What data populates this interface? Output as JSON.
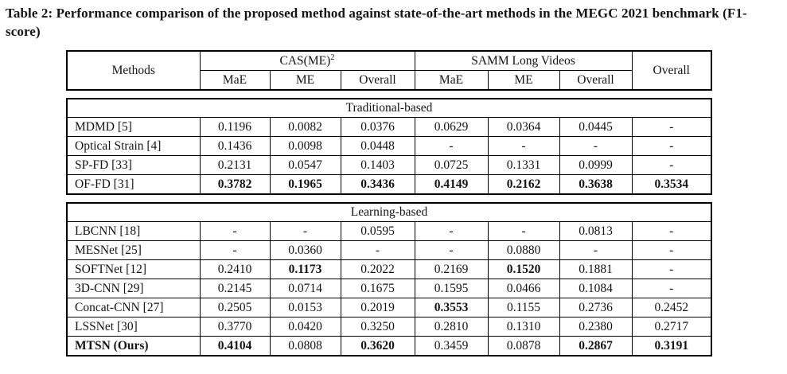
{
  "title": "Table 2: Performance comparison of the proposed method against state-of-the-art methods in the MEGC 2021 benchmark (F1-score)",
  "table": {
    "header": {
      "methods_label": "Methods",
      "cas_label": "CAS(ME)",
      "cas_sup": "2",
      "samm_label": "SAMM Long Videos",
      "overall_label": "Overall",
      "subheaders": [
        "MaE",
        "ME",
        "Overall",
        "MaE",
        "ME",
        "Overall"
      ]
    },
    "sections": [
      {
        "label": "Traditional-based",
        "rows": [
          {
            "method": "MDMD [5]",
            "method_bold": false,
            "values": [
              "0.1196",
              "0.0082",
              "0.0376",
              "0.0629",
              "0.0364",
              "0.0445",
              "-"
            ],
            "bold": [
              false,
              false,
              false,
              false,
              false,
              false,
              false
            ]
          },
          {
            "method": "Optical Strain [4]",
            "method_bold": false,
            "values": [
              "0.1436",
              "0.0098",
              "0.0448",
              "-",
              "-",
              "-",
              "-"
            ],
            "bold": [
              false,
              false,
              false,
              false,
              false,
              false,
              false
            ]
          },
          {
            "method": "SP-FD [33]",
            "method_bold": false,
            "values": [
              "0.2131",
              "0.0547",
              "0.1403",
              "0.0725",
              "0.1331",
              "0.0999",
              "-"
            ],
            "bold": [
              false,
              false,
              false,
              false,
              false,
              false,
              false
            ]
          },
          {
            "method": "OF-FD [31]",
            "method_bold": false,
            "values": [
              "0.3782",
              "0.1965",
              "0.3436",
              "0.4149",
              "0.2162",
              "0.3638",
              "0.3534"
            ],
            "bold": [
              true,
              true,
              true,
              true,
              true,
              true,
              true
            ]
          }
        ]
      },
      {
        "label": "Learning-based",
        "rows": [
          {
            "method": "LBCNN [18]",
            "method_bold": false,
            "values": [
              "-",
              "-",
              "0.0595",
              "-",
              "-",
              "0.0813",
              "-"
            ],
            "bold": [
              false,
              false,
              false,
              false,
              false,
              false,
              false
            ]
          },
          {
            "method": "MESNet [25]",
            "method_bold": false,
            "values": [
              "-",
              "0.0360",
              "-",
              "-",
              "0.0880",
              "-",
              "-"
            ],
            "bold": [
              false,
              false,
              false,
              false,
              false,
              false,
              false
            ]
          },
          {
            "method": "SOFTNet [12]",
            "method_bold": false,
            "values": [
              "0.2410",
              "0.1173",
              "0.2022",
              "0.2169",
              "0.1520",
              "0.1881",
              "-"
            ],
            "bold": [
              false,
              true,
              false,
              false,
              true,
              false,
              false
            ]
          },
          {
            "method": "3D-CNN [29]",
            "method_bold": false,
            "values": [
              "0.2145",
              "0.0714",
              "0.1675",
              "0.1595",
              "0.0466",
              "0.1084",
              "-"
            ],
            "bold": [
              false,
              false,
              false,
              false,
              false,
              false,
              false
            ]
          },
          {
            "method": "Concat-CNN [27]",
            "method_bold": false,
            "values": [
              "0.2505",
              "0.0153",
              "0.2019",
              "0.3553",
              "0.1155",
              "0.2736",
              "0.2452"
            ],
            "bold": [
              false,
              false,
              false,
              true,
              false,
              false,
              false
            ]
          },
          {
            "method": "LSSNet [30]",
            "method_bold": false,
            "values": [
              "0.3770",
              "0.0420",
              "0.3250",
              "0.2810",
              "0.1310",
              "0.2380",
              "0.2717"
            ],
            "bold": [
              false,
              false,
              false,
              false,
              false,
              false,
              false
            ]
          },
          {
            "method": "MTSN (Ours)",
            "method_bold": true,
            "values": [
              "0.4104",
              "0.0808",
              "0.3620",
              "0.3459",
              "0.0878",
              "0.2867",
              "0.3191"
            ],
            "bold": [
              true,
              false,
              true,
              false,
              false,
              true,
              true
            ]
          }
        ]
      }
    ]
  }
}
